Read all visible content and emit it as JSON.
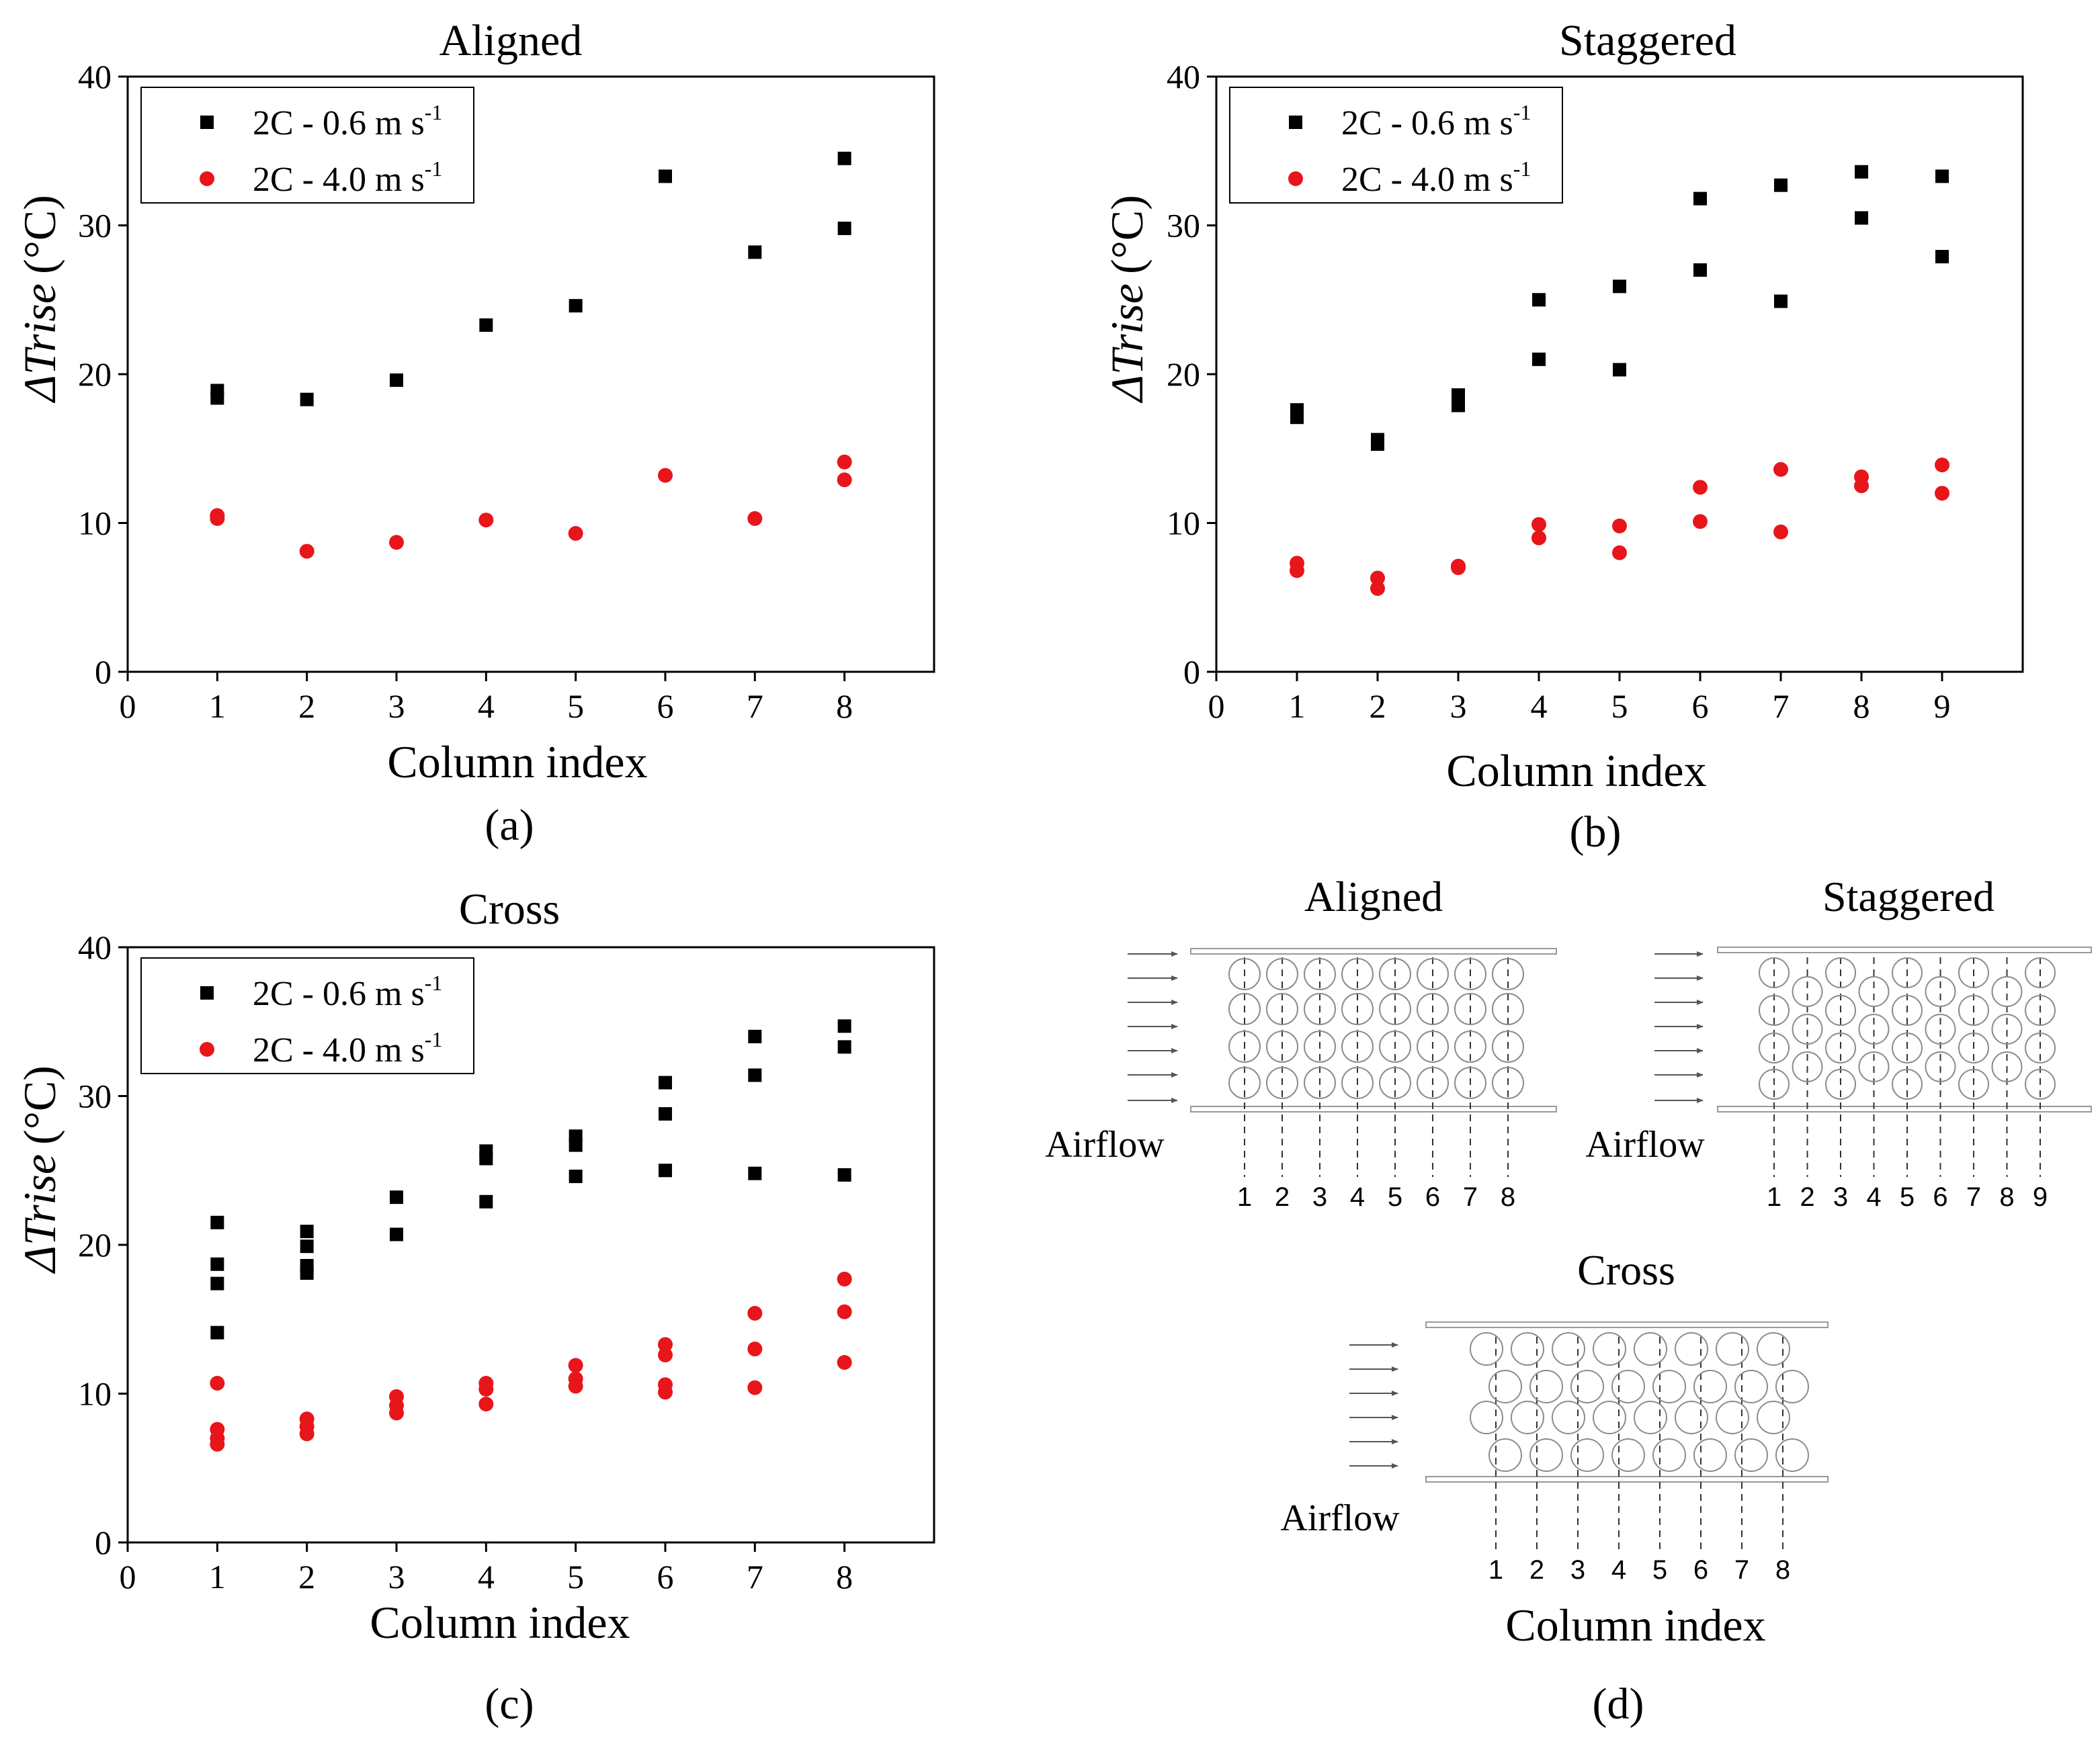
{
  "colors": {
    "series_a": "#000000",
    "series_b": "#e8151b",
    "tube_outline": "#8c8c8c"
  },
  "chart_data": [
    {
      "type": "scatter",
      "title": "Aligned",
      "panel_label": "(a)",
      "xlabel": "Column index",
      "ylabel": "ΔTrise (°C)",
      "ylabel_parts": [
        "ΔTrise",
        "(°C)"
      ],
      "xlim": [
        0,
        9
      ],
      "ylim": [
        0,
        40
      ],
      "xticks": [
        "0",
        "1",
        "2",
        "3",
        "4",
        "5",
        "6",
        "7",
        "8"
      ],
      "yticks": [
        "0",
        "10",
        "20",
        "30",
        "40"
      ],
      "legend_position": "top-left",
      "series": [
        {
          "name": "2C - 0.6 m s-1",
          "name_parts": [
            "2C - 0.6 m s",
            "-1"
          ],
          "marker": "square",
          "points": [
            [
              1,
              18.9
            ],
            [
              1,
              18.4
            ],
            [
              2,
              18.3
            ],
            [
              3,
              19.6
            ],
            [
              4,
              23.3
            ],
            [
              5,
              24.6
            ],
            [
              6,
              33.3
            ],
            [
              7,
              28.2
            ],
            [
              8,
              34.5
            ],
            [
              8,
              29.8
            ]
          ]
        },
        {
          "name": "2C - 4.0 m s-1",
          "name_parts": [
            "2C - 4.0 m s",
            "-1"
          ],
          "marker": "circle",
          "points": [
            [
              1,
              10.5
            ],
            [
              1,
              10.3
            ],
            [
              2,
              8.1
            ],
            [
              3,
              8.7
            ],
            [
              4,
              10.2
            ],
            [
              5,
              9.3
            ],
            [
              6,
              13.2
            ],
            [
              7,
              10.3
            ],
            [
              8,
              14.1
            ],
            [
              8,
              12.9
            ]
          ]
        }
      ]
    },
    {
      "type": "scatter",
      "title": "Staggered",
      "panel_label": "(b)",
      "xlabel": "Column index",
      "ylabel": "ΔTrise (°C)",
      "ylabel_parts": [
        "ΔTrise",
        "(°C)"
      ],
      "xlim": [
        0,
        10
      ],
      "ylim": [
        0,
        40
      ],
      "xticks": [
        "0",
        "1",
        "2",
        "3",
        "4",
        "5",
        "6",
        "7",
        "8",
        "9"
      ],
      "yticks": [
        "0",
        "10",
        "20",
        "30",
        "40"
      ],
      "legend_position": "top-left",
      "series": [
        {
          "name": "2C - 0.6 m s-1",
          "name_parts": [
            "2C - 0.6 m s",
            "-1"
          ],
          "marker": "square",
          "points": [
            [
              1,
              17.6
            ],
            [
              1,
              17.1
            ],
            [
              2,
              15.6
            ],
            [
              2,
              15.3
            ],
            [
              3,
              18.6
            ],
            [
              3,
              17.9
            ],
            [
              4,
              25.0
            ],
            [
              4,
              21.0
            ],
            [
              5,
              25.9
            ],
            [
              5,
              20.3
            ],
            [
              6,
              31.8
            ],
            [
              6,
              27.0
            ],
            [
              7,
              32.7
            ],
            [
              7,
              24.9
            ],
            [
              8,
              33.6
            ],
            [
              8,
              30.5
            ],
            [
              9,
              33.3
            ],
            [
              9,
              27.9
            ]
          ]
        },
        {
          "name": "2C - 4.0 m s-1",
          "name_parts": [
            "2C - 4.0 m s",
            "-1"
          ],
          "marker": "circle",
          "points": [
            [
              1,
              7.3
            ],
            [
              1,
              6.8
            ],
            [
              2,
              6.3
            ],
            [
              2,
              5.6
            ],
            [
              3,
              7.1
            ],
            [
              3,
              7.0
            ],
            [
              4,
              9.9
            ],
            [
              4,
              9.0
            ],
            [
              5,
              9.8
            ],
            [
              5,
              8.0
            ],
            [
              6,
              12.4
            ],
            [
              6,
              10.1
            ],
            [
              7,
              13.6
            ],
            [
              7,
              9.4
            ],
            [
              8,
              13.1
            ],
            [
              8,
              12.5
            ],
            [
              9,
              13.9
            ],
            [
              9,
              12.0
            ]
          ]
        }
      ]
    },
    {
      "type": "scatter",
      "title": "Cross",
      "panel_label": "(c)",
      "xlabel": "Column index",
      "ylabel": "ΔTrise (°C)",
      "ylabel_parts": [
        "ΔTrise",
        "(°C)"
      ],
      "xlim": [
        0,
        9
      ],
      "ylim": [
        0,
        40
      ],
      "xticks": [
        "0",
        "1",
        "2",
        "3",
        "4",
        "5",
        "6",
        "7",
        "8"
      ],
      "yticks": [
        "0",
        "10",
        "20",
        "30",
        "40"
      ],
      "legend_position": "top-left",
      "series": [
        {
          "name": "2C - 0.6 m s-1",
          "name_parts": [
            "2C - 0.6 m s",
            "-1"
          ],
          "marker": "square",
          "points": [
            [
              1,
              21.5
            ],
            [
              1,
              18.7
            ],
            [
              1,
              17.4
            ],
            [
              1,
              14.1
            ],
            [
              2,
              20.9
            ],
            [
              2,
              19.9
            ],
            [
              2,
              18.6
            ],
            [
              2,
              18.1
            ],
            [
              3,
              23.2
            ],
            [
              3,
              20.7
            ],
            [
              4,
              26.3
            ],
            [
              4,
              25.8
            ],
            [
              4,
              22.9
            ],
            [
              5,
              27.3
            ],
            [
              5,
              26.7
            ],
            [
              5,
              24.6
            ],
            [
              6,
              30.9
            ],
            [
              6,
              28.8
            ],
            [
              6,
              25.0
            ],
            [
              7,
              34.0
            ],
            [
              7,
              31.4
            ],
            [
              7,
              24.8
            ],
            [
              8,
              34.7
            ],
            [
              8,
              33.3
            ],
            [
              8,
              24.7
            ]
          ]
        },
        {
          "name": "2C - 4.0 m s-1",
          "name_parts": [
            "2C - 4.0 m s",
            "-1"
          ],
          "marker": "circle",
          "points": [
            [
              1,
              10.7
            ],
            [
              1,
              7.6
            ],
            [
              1,
              7.0
            ],
            [
              1,
              6.6
            ],
            [
              2,
              8.3
            ],
            [
              2,
              7.8
            ],
            [
              2,
              7.3
            ],
            [
              3,
              9.8
            ],
            [
              3,
              9.2
            ],
            [
              3,
              8.7
            ],
            [
              4,
              10.7
            ],
            [
              4,
              10.3
            ],
            [
              4,
              9.3
            ],
            [
              5,
              11.9
            ],
            [
              5,
              11.0
            ],
            [
              5,
              10.5
            ],
            [
              6,
              13.3
            ],
            [
              6,
              12.6
            ],
            [
              6,
              10.6
            ],
            [
              6,
              10.1
            ],
            [
              7,
              15.4
            ],
            [
              7,
              13.0
            ],
            [
              7,
              10.4
            ],
            [
              8,
              17.7
            ],
            [
              8,
              15.5
            ],
            [
              8,
              12.1
            ]
          ]
        }
      ]
    }
  ],
  "diagram": {
    "panel_label": "(d)",
    "axis_label": "Column index",
    "aligned": {
      "title": "Aligned",
      "airflow_label": "Airflow",
      "columns": [
        "1",
        "2",
        "3",
        "4",
        "5",
        "6",
        "7",
        "8"
      ]
    },
    "staggered": {
      "title": "Staggered",
      "airflow_label": "Airflow",
      "columns": [
        "1",
        "2",
        "3",
        "4",
        "5",
        "6",
        "7",
        "8",
        "9"
      ]
    },
    "cross": {
      "title": "Cross",
      "airflow_label": "Airflow",
      "columns": [
        "1",
        "2",
        "3",
        "4",
        "5",
        "6",
        "7",
        "8"
      ]
    }
  }
}
